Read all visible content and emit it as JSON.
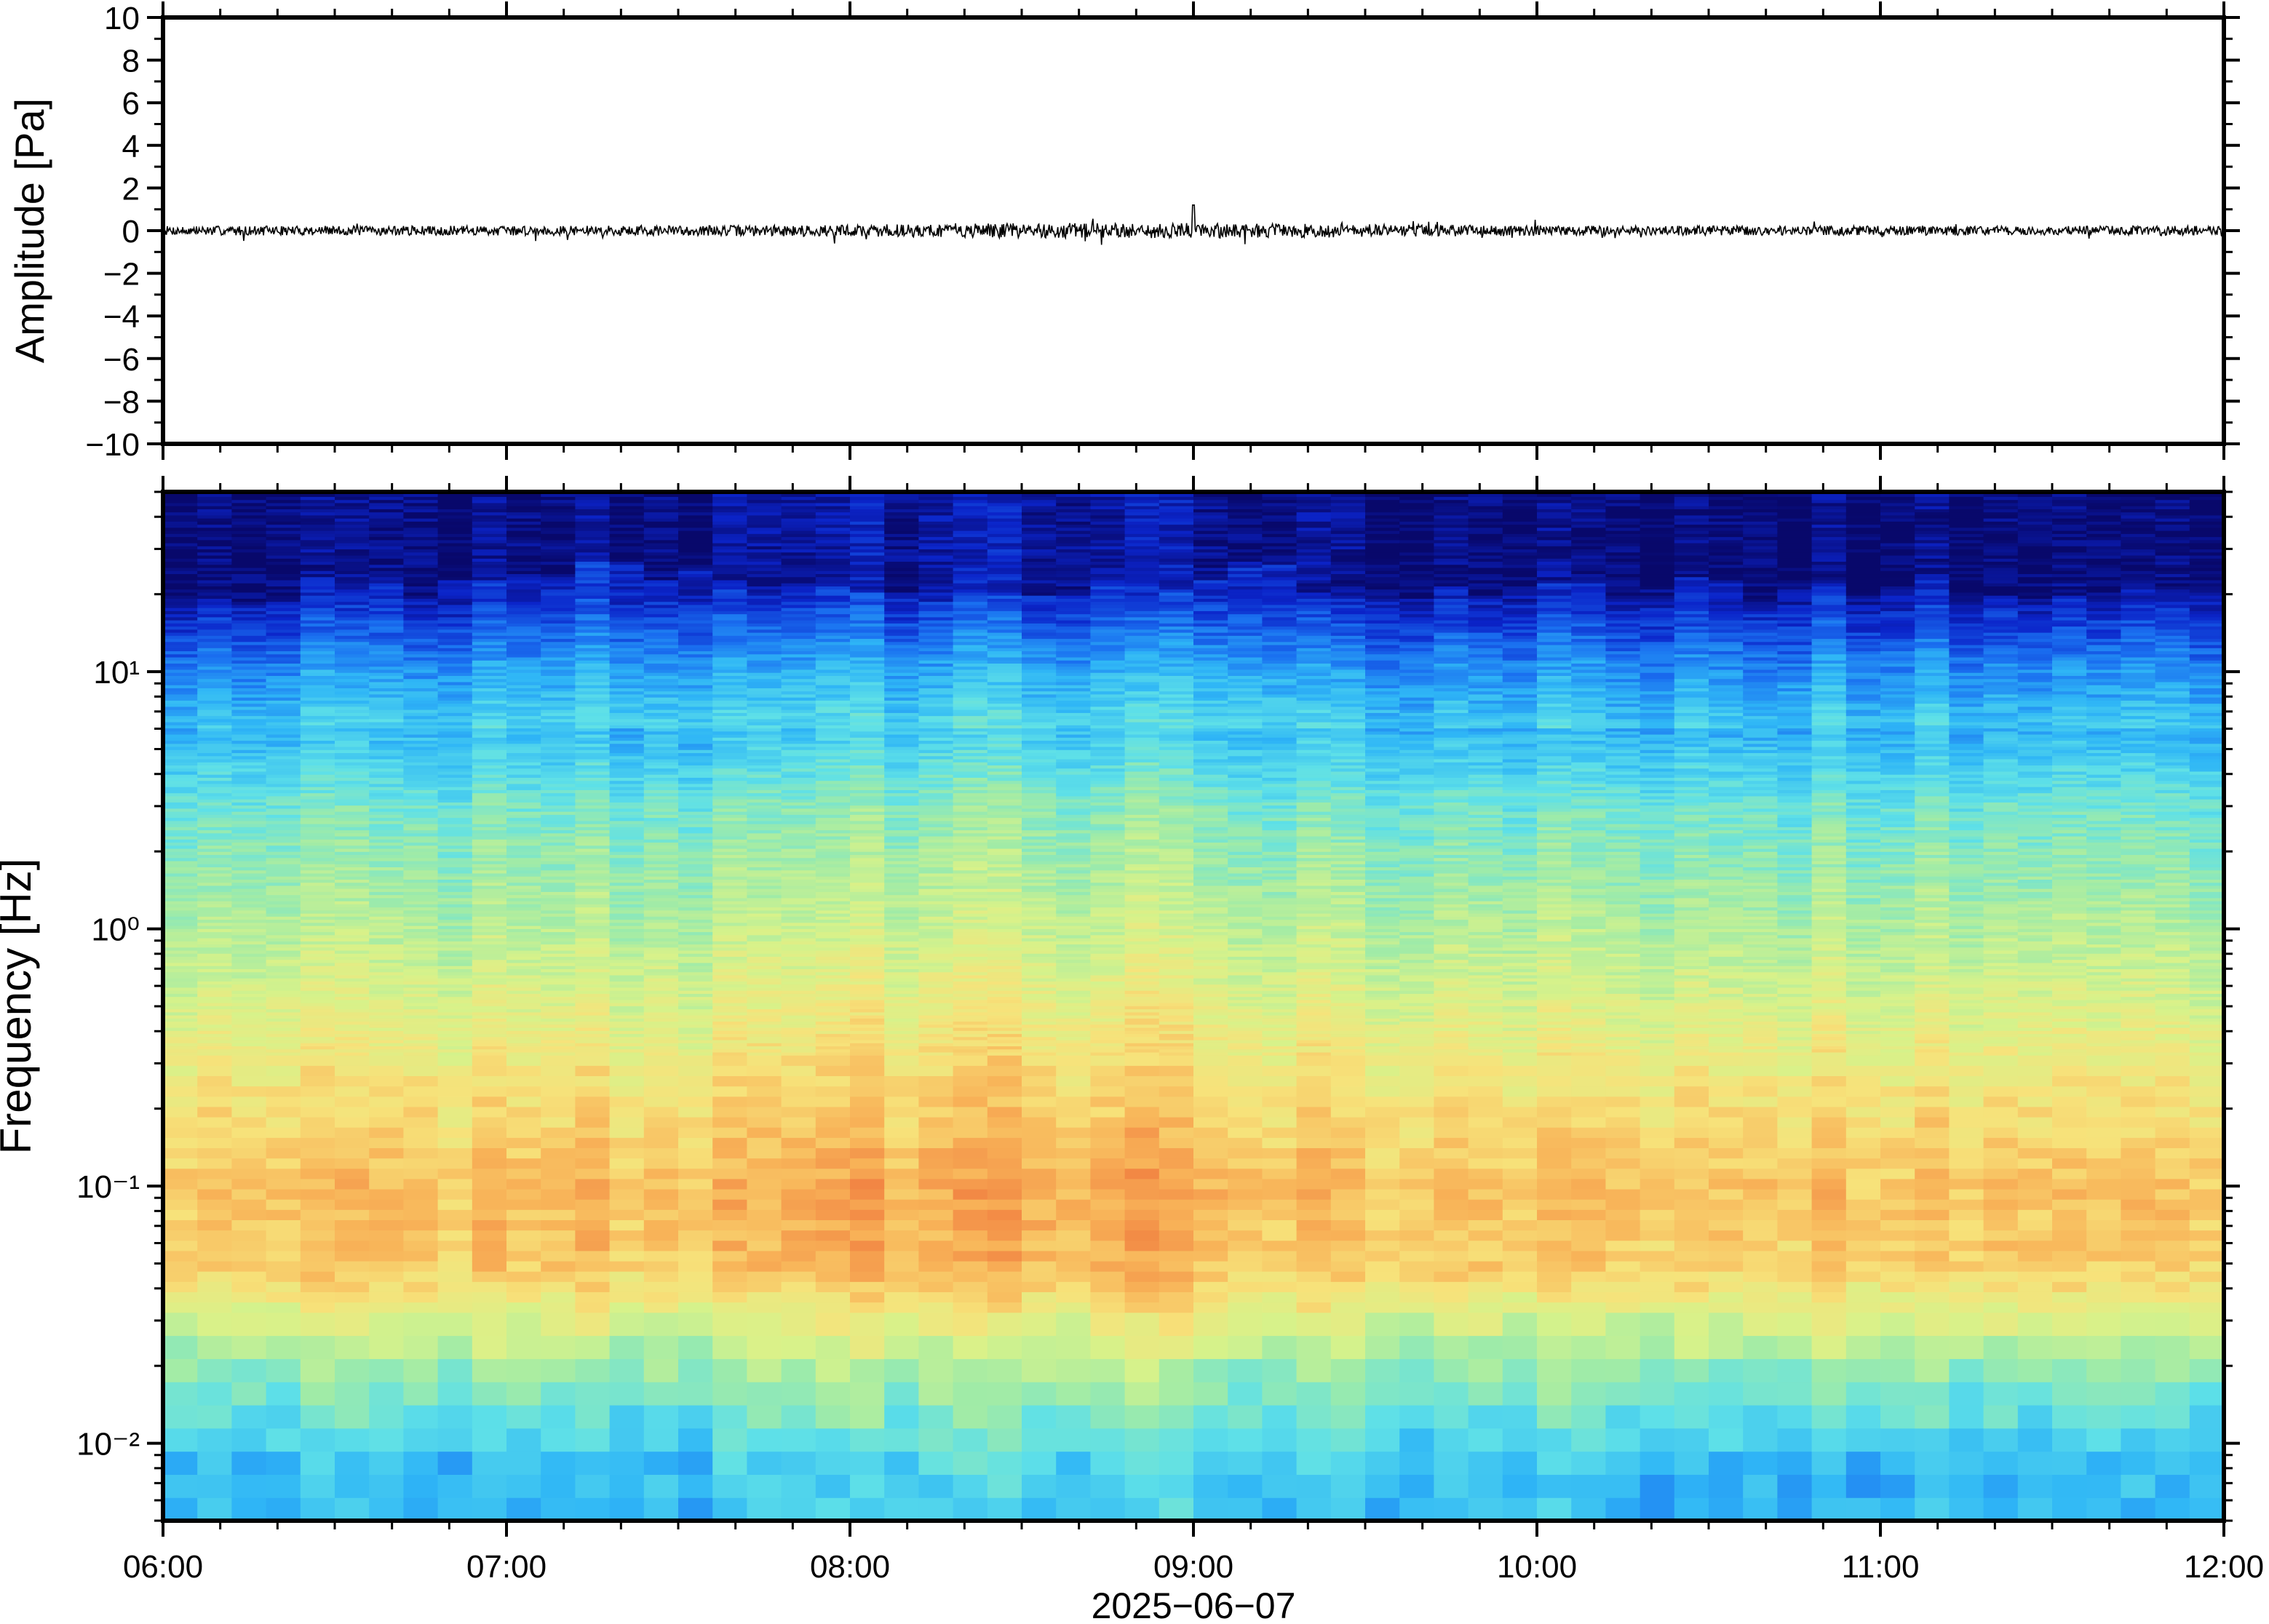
{
  "chart_data": [
    {
      "type": "line",
      "panel": "waveform",
      "ylabel": "Amplitude [Pa]",
      "ylim": [
        -10,
        10
      ],
      "yticks": [
        10,
        8,
        6,
        4,
        2,
        0,
        -2,
        -4,
        -6,
        -8,
        -10
      ],
      "ytick_labels": [
        "10",
        "8",
        "6",
        "4",
        "2",
        "0",
        "−2",
        "−4",
        "−6",
        "−8",
        "−10"
      ],
      "xlim": [
        "06:00",
        "12:00"
      ],
      "series": [
        {
          "color": "#000000",
          "approx_baseline": 0,
          "typical_peak_abs": 0.4,
          "max_peak": 1.2,
          "max_peak_time": "09:00"
        }
      ]
    },
    {
      "type": "heatmap",
      "panel": "spectrogram",
      "ylabel": "Frequency [Hz]",
      "yscale": "log",
      "ylim": [
        0.005,
        50
      ],
      "ytick_labels": [
        "10¹",
        "10⁰",
        "10⁻¹",
        "10⁻²"
      ],
      "ytick_values": [
        10,
        1,
        0.1,
        0.01
      ],
      "xlim": [
        "06:00",
        "12:00"
      ],
      "xticks": [
        "06:00",
        "07:00",
        "08:00",
        "09:00",
        "10:00",
        "11:00",
        "12:00"
      ],
      "xlabel": "2025−06−07",
      "colormap": [
        "#08086b",
        "#0b24c9",
        "#1a6ff0",
        "#2fb6f6",
        "#5ee0e8",
        "#9feba8",
        "#d7f28a",
        "#f7e27a",
        "#f8b358",
        "#f07a3e"
      ],
      "notes_levels_by_frequency": {
        "above_20Hz": 0.02,
        "10Hz": 0.22,
        "3Hz": 0.48,
        "1Hz": 0.6,
        "0.3Hz": 0.74,
        "0.1Hz": 0.85,
        "0.05Hz": 0.83,
        "0.02Hz": 0.55,
        "0.008Hz": 0.35
      },
      "columns": 60
    }
  ]
}
